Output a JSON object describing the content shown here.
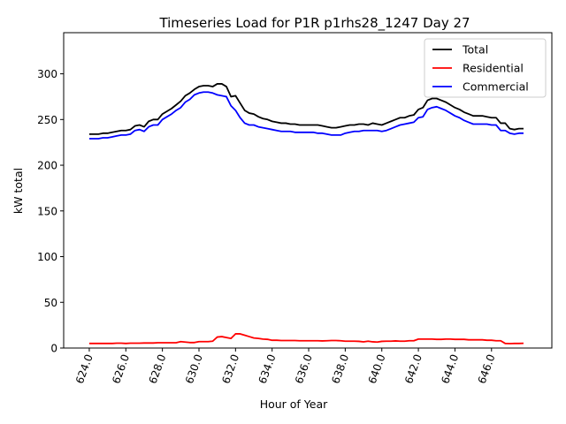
{
  "chart_data": {
    "type": "line",
    "title": "Timeseries Load for P1R p1rhs28_1247  Day 27",
    "xlabel": "Hour of Year",
    "ylabel": "kW total",
    "xlim": [
      622.6,
      649.3
    ],
    "ylim": [
      0,
      345
    ],
    "xticks": [
      624,
      626,
      628,
      630,
      632,
      634,
      636,
      638,
      640,
      642,
      644,
      646
    ],
    "xtick_labels": [
      "624.0",
      "626.0",
      "628.0",
      "630.0",
      "632.0",
      "634.0",
      "636.0",
      "638.0",
      "640.0",
      "642.0",
      "644.0",
      "646.0"
    ],
    "yticks": [
      0,
      50,
      100,
      150,
      200,
      250,
      300
    ],
    "ytick_labels": [
      "0",
      "50",
      "100",
      "150",
      "200",
      "250",
      "300"
    ],
    "legend_position": "top-right",
    "series": [
      {
        "name": "Total",
        "color": "#000000",
        "points": [
          [
            624.0,
            234
          ],
          [
            624.25,
            234
          ],
          [
            624.5,
            234
          ],
          [
            624.75,
            235
          ],
          [
            625.0,
            235
          ],
          [
            625.25,
            236
          ],
          [
            625.5,
            237
          ],
          [
            625.75,
            238
          ],
          [
            626.0,
            238
          ],
          [
            626.25,
            239
          ],
          [
            626.5,
            243
          ],
          [
            626.75,
            244
          ],
          [
            627.0,
            242
          ],
          [
            627.25,
            248
          ],
          [
            627.5,
            250
          ],
          [
            627.75,
            250
          ],
          [
            628.0,
            256
          ],
          [
            628.25,
            259
          ],
          [
            628.5,
            262
          ],
          [
            628.75,
            266
          ],
          [
            629.0,
            270
          ],
          [
            629.25,
            276
          ],
          [
            629.5,
            279
          ],
          [
            629.75,
            283
          ],
          [
            630.0,
            286
          ],
          [
            630.25,
            287
          ],
          [
            630.5,
            287
          ],
          [
            630.75,
            286
          ],
          [
            631.0,
            289
          ],
          [
            631.25,
            289
          ],
          [
            631.5,
            286
          ],
          [
            631.75,
            275
          ],
          [
            632.0,
            276
          ],
          [
            632.25,
            268
          ],
          [
            632.5,
            260
          ],
          [
            632.75,
            257
          ],
          [
            633.0,
            256
          ],
          [
            633.25,
            253
          ],
          [
            633.5,
            251
          ],
          [
            633.75,
            250
          ],
          [
            634.0,
            248
          ],
          [
            634.25,
            247
          ],
          [
            634.5,
            246
          ],
          [
            634.75,
            246
          ],
          [
            635.0,
            245
          ],
          [
            635.25,
            245
          ],
          [
            635.5,
            244
          ],
          [
            635.75,
            244
          ],
          [
            636.0,
            244
          ],
          [
            636.25,
            244
          ],
          [
            636.5,
            244
          ],
          [
            636.75,
            243
          ],
          [
            637.0,
            242
          ],
          [
            637.25,
            241
          ],
          [
            637.5,
            241
          ],
          [
            637.75,
            242
          ],
          [
            638.0,
            243
          ],
          [
            638.25,
            244
          ],
          [
            638.5,
            244
          ],
          [
            638.75,
            245
          ],
          [
            639.0,
            245
          ],
          [
            639.25,
            244
          ],
          [
            639.5,
            246
          ],
          [
            639.75,
            245
          ],
          [
            640.0,
            244
          ],
          [
            640.25,
            246
          ],
          [
            640.5,
            248
          ],
          [
            640.75,
            250
          ],
          [
            641.0,
            252
          ],
          [
            641.25,
            252
          ],
          [
            641.5,
            254
          ],
          [
            641.75,
            255
          ],
          [
            642.0,
            261
          ],
          [
            642.25,
            263
          ],
          [
            642.5,
            271
          ],
          [
            642.75,
            273
          ],
          [
            643.0,
            273
          ],
          [
            643.25,
            271
          ],
          [
            643.5,
            269
          ],
          [
            643.75,
            266
          ],
          [
            644.0,
            263
          ],
          [
            644.25,
            261
          ],
          [
            644.5,
            258
          ],
          [
            644.75,
            256
          ],
          [
            645.0,
            254
          ],
          [
            645.25,
            254
          ],
          [
            645.5,
            254
          ],
          [
            645.75,
            253
          ],
          [
            646.0,
            252
          ],
          [
            646.25,
            252
          ],
          [
            646.5,
            246
          ],
          [
            646.75,
            246
          ],
          [
            647.0,
            240
          ],
          [
            647.25,
            239
          ],
          [
            647.5,
            240
          ],
          [
            647.75,
            240
          ]
        ]
      },
      {
        "name": "Residential",
        "color": "#ff0000",
        "points": [
          [
            624.0,
            5
          ],
          [
            624.25,
            5
          ],
          [
            624.5,
            5
          ],
          [
            624.75,
            5
          ],
          [
            625.0,
            5
          ],
          [
            625.25,
            5
          ],
          [
            625.5,
            5.3
          ],
          [
            625.75,
            5.3
          ],
          [
            626.0,
            5
          ],
          [
            626.25,
            5.3
          ],
          [
            626.5,
            5.3
          ],
          [
            626.75,
            5.3
          ],
          [
            627.0,
            5.5
          ],
          [
            627.25,
            5.5
          ],
          [
            627.5,
            5.5
          ],
          [
            627.75,
            5.8
          ],
          [
            628.0,
            5.8
          ],
          [
            628.25,
            5.8
          ],
          [
            628.5,
            5.8
          ],
          [
            628.75,
            5.8
          ],
          [
            629.0,
            7
          ],
          [
            629.25,
            6.5
          ],
          [
            629.5,
            6
          ],
          [
            629.75,
            6
          ],
          [
            630.0,
            7
          ],
          [
            630.25,
            7
          ],
          [
            630.5,
            7
          ],
          [
            630.75,
            7.5
          ],
          [
            631.0,
            12
          ],
          [
            631.25,
            12.5
          ],
          [
            631.5,
            11.5
          ],
          [
            631.75,
            10.5
          ],
          [
            632.0,
            15.5
          ],
          [
            632.25,
            15.5
          ],
          [
            632.5,
            14
          ],
          [
            632.75,
            12.5
          ],
          [
            633.0,
            11
          ],
          [
            633.25,
            10.5
          ],
          [
            633.5,
            9.8
          ],
          [
            633.75,
            9.5
          ],
          [
            634.0,
            8.5
          ],
          [
            634.25,
            8.5
          ],
          [
            634.5,
            8.2
          ],
          [
            634.75,
            8.2
          ],
          [
            635.0,
            8.2
          ],
          [
            635.25,
            8.2
          ],
          [
            635.5,
            8
          ],
          [
            635.75,
            8
          ],
          [
            636.0,
            8
          ],
          [
            636.25,
            8
          ],
          [
            636.5,
            8
          ],
          [
            636.75,
            7.8
          ],
          [
            637.0,
            8
          ],
          [
            637.25,
            8.2
          ],
          [
            637.5,
            8.2
          ],
          [
            637.75,
            8
          ],
          [
            638.0,
            7.5
          ],
          [
            638.25,
            7.5
          ],
          [
            638.5,
            7.5
          ],
          [
            638.75,
            7.3
          ],
          [
            639.0,
            6.8
          ],
          [
            639.25,
            7.5
          ],
          [
            639.5,
            6.8
          ],
          [
            639.75,
            6.5
          ],
          [
            640.0,
            7.3
          ],
          [
            640.25,
            7.5
          ],
          [
            640.5,
            7.5
          ],
          [
            640.75,
            7.8
          ],
          [
            641.0,
            7.5
          ],
          [
            641.25,
            7.5
          ],
          [
            641.5,
            8
          ],
          [
            641.75,
            8
          ],
          [
            642.0,
            9.8
          ],
          [
            642.25,
            9.8
          ],
          [
            642.5,
            9.8
          ],
          [
            642.75,
            9.8
          ],
          [
            643.0,
            9.5
          ],
          [
            643.25,
            9.5
          ],
          [
            643.5,
            9.8
          ],
          [
            643.75,
            9.8
          ],
          [
            644.0,
            9.5
          ],
          [
            644.25,
            9.5
          ],
          [
            644.5,
            9.5
          ],
          [
            644.75,
            9
          ],
          [
            645.0,
            9
          ],
          [
            645.25,
            9
          ],
          [
            645.5,
            9
          ],
          [
            645.75,
            8.5
          ],
          [
            646.0,
            8.5
          ],
          [
            646.25,
            8
          ],
          [
            646.5,
            8
          ],
          [
            646.75,
            5
          ],
          [
            647.0,
            4.8
          ],
          [
            647.25,
            5
          ],
          [
            647.5,
            5
          ],
          [
            647.75,
            5.2
          ]
        ]
      },
      {
        "name": "Commercial",
        "color": "#0000ff",
        "points": [
          [
            624.0,
            229
          ],
          [
            624.25,
            229
          ],
          [
            624.5,
            229
          ],
          [
            624.75,
            230
          ],
          [
            625.0,
            230
          ],
          [
            625.25,
            231
          ],
          [
            625.5,
            232
          ],
          [
            625.75,
            233
          ],
          [
            626.0,
            233
          ],
          [
            626.25,
            234
          ],
          [
            626.5,
            238
          ],
          [
            626.75,
            239
          ],
          [
            627.0,
            237
          ],
          [
            627.25,
            242
          ],
          [
            627.5,
            244
          ],
          [
            627.75,
            244
          ],
          [
            628.0,
            250
          ],
          [
            628.25,
            253
          ],
          [
            628.5,
            256
          ],
          [
            628.75,
            260
          ],
          [
            629.0,
            263
          ],
          [
            629.25,
            269
          ],
          [
            629.5,
            272
          ],
          [
            629.75,
            277
          ],
          [
            630.0,
            279
          ],
          [
            630.25,
            280
          ],
          [
            630.5,
            280
          ],
          [
            630.75,
            279
          ],
          [
            631.0,
            277
          ],
          [
            631.25,
            276
          ],
          [
            631.5,
            275
          ],
          [
            631.75,
            265
          ],
          [
            632.0,
            260
          ],
          [
            632.25,
            252
          ],
          [
            632.5,
            246
          ],
          [
            632.75,
            244
          ],
          [
            633.0,
            244
          ],
          [
            633.25,
            242
          ],
          [
            633.5,
            241
          ],
          [
            633.75,
            240
          ],
          [
            634.0,
            239
          ],
          [
            634.25,
            238
          ],
          [
            634.5,
            237
          ],
          [
            634.75,
            237
          ],
          [
            635.0,
            237
          ],
          [
            635.25,
            236
          ],
          [
            635.5,
            236
          ],
          [
            635.75,
            236
          ],
          [
            636.0,
            236
          ],
          [
            636.25,
            236
          ],
          [
            636.5,
            235
          ],
          [
            636.75,
            235
          ],
          [
            637.0,
            234
          ],
          [
            637.25,
            233
          ],
          [
            637.5,
            233
          ],
          [
            637.75,
            233
          ],
          [
            638.0,
            235
          ],
          [
            638.25,
            236
          ],
          [
            638.5,
            237
          ],
          [
            638.75,
            237
          ],
          [
            639.0,
            238
          ],
          [
            639.25,
            238
          ],
          [
            639.5,
            238
          ],
          [
            639.75,
            238
          ],
          [
            640.0,
            237
          ],
          [
            640.25,
            238
          ],
          [
            640.5,
            240
          ],
          [
            640.75,
            242
          ],
          [
            641.0,
            244
          ],
          [
            641.25,
            245
          ],
          [
            641.5,
            246
          ],
          [
            641.75,
            247
          ],
          [
            642.0,
            252
          ],
          [
            642.25,
            253
          ],
          [
            642.5,
            261
          ],
          [
            642.75,
            263
          ],
          [
            643.0,
            264
          ],
          [
            643.25,
            262
          ],
          [
            643.5,
            260
          ],
          [
            643.75,
            257
          ],
          [
            644.0,
            254
          ],
          [
            644.25,
            252
          ],
          [
            644.5,
            249
          ],
          [
            644.75,
            247
          ],
          [
            645.0,
            245
          ],
          [
            645.25,
            245
          ],
          [
            645.5,
            245
          ],
          [
            645.75,
            245
          ],
          [
            646.0,
            244
          ],
          [
            646.25,
            244
          ],
          [
            646.5,
            238
          ],
          [
            646.75,
            238
          ],
          [
            647.0,
            235
          ],
          [
            647.25,
            234
          ],
          [
            647.5,
            235
          ],
          [
            647.75,
            235
          ]
        ]
      }
    ]
  }
}
